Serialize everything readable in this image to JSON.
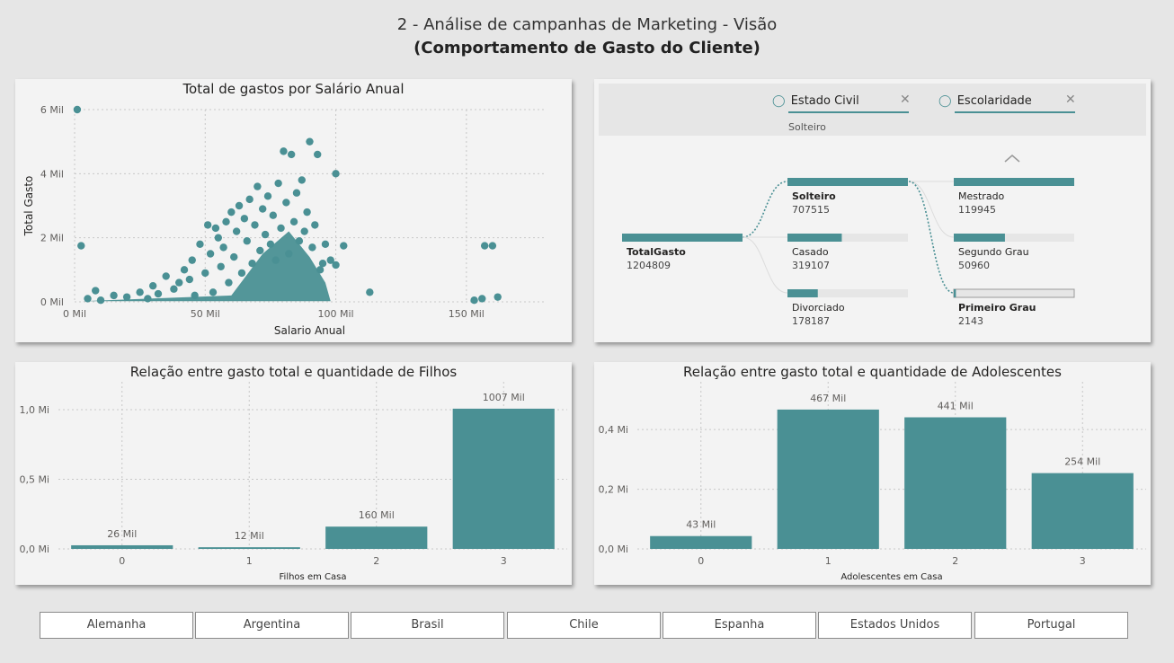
{
  "header": {
    "title": "2 - Análise de campanhas de Marketing - Visão",
    "subtitle": "(Comportamento de Gasto do Cliente)"
  },
  "colors": {
    "teal": "#4a9094",
    "panel": "#f3f3f3",
    "background": "#e6e6e6"
  },
  "scatter": {
    "title": "Total de gastos por Salário Anual",
    "xlabel": "Salario Anual",
    "ylabel": "Total Gasto",
    "xticks": [
      "0 Mil",
      "50 Mil",
      "100 Mil",
      "150 Mil"
    ],
    "yticks": [
      "0 Mil",
      "2 Mil",
      "4 Mil",
      "6 Mil"
    ]
  },
  "decomp": {
    "filters": [
      {
        "label": "Estado Civil",
        "value": "Solteiro"
      },
      {
        "label": "Escolaridade",
        "value": ""
      }
    ],
    "root": {
      "label": "TotalGasto",
      "value": "1204809"
    },
    "level1": [
      {
        "label": "Solteiro",
        "value": "707515",
        "selected": true
      },
      {
        "label": "Casado",
        "value": "319107"
      },
      {
        "label": "Divorciado",
        "value": "178187"
      }
    ],
    "level2": [
      {
        "label": "Mestrado",
        "value": "119945"
      },
      {
        "label": "Segundo Grau",
        "value": "50960"
      },
      {
        "label": "Primeiro Grau",
        "value": "2143",
        "selected": true
      }
    ]
  },
  "chart_data": [
    {
      "type": "scatter",
      "title": "Total de gastos por Salário Anual",
      "xlabel": "Salario Anual",
      "ylabel": "Total Gasto",
      "xlim": [
        0,
        180000
      ],
      "ylim": [
        0,
        6000
      ],
      "x_tick_labels": [
        "0 Mil",
        "50 Mil",
        "100 Mil",
        "150 Mil"
      ],
      "y_tick_labels": [
        "0 Mil",
        "2 Mil",
        "4 Mil",
        "6 Mil"
      ],
      "points": [
        [
          1000,
          6000
        ],
        [
          2500,
          1750
        ],
        [
          5000,
          100
        ],
        [
          8000,
          350
        ],
        [
          10000,
          50
        ],
        [
          15000,
          200
        ],
        [
          20000,
          150
        ],
        [
          25000,
          300
        ],
        [
          28000,
          100
        ],
        [
          30000,
          500
        ],
        [
          32000,
          250
        ],
        [
          35000,
          800
        ],
        [
          38000,
          400
        ],
        [
          40000,
          600
        ],
        [
          42000,
          1000
        ],
        [
          44000,
          700
        ],
        [
          45000,
          1300
        ],
        [
          46000,
          200
        ],
        [
          48000,
          1800
        ],
        [
          50000,
          900
        ],
        [
          51000,
          2400
        ],
        [
          52000,
          1500
        ],
        [
          53000,
          300
        ],
        [
          54000,
          2300
        ],
        [
          55000,
          2000
        ],
        [
          56000,
          1100
        ],
        [
          57000,
          1700
        ],
        [
          58000,
          2500
        ],
        [
          59000,
          600
        ],
        [
          60000,
          2800
        ],
        [
          61000,
          1400
        ],
        [
          62000,
          2200
        ],
        [
          63000,
          3000
        ],
        [
          64000,
          900
        ],
        [
          65000,
          2600
        ],
        [
          66000,
          1900
        ],
        [
          67000,
          3200
        ],
        [
          68000,
          1200
        ],
        [
          69000,
          2400
        ],
        [
          70000,
          3600
        ],
        [
          71000,
          1600
        ],
        [
          72000,
          2900
        ],
        [
          73000,
          2100
        ],
        [
          74000,
          3300
        ],
        [
          75000,
          1800
        ],
        [
          76000,
          2700
        ],
        [
          77000,
          1300
        ],
        [
          78000,
          3700
        ],
        [
          79000,
          2300
        ],
        [
          80000,
          4700
        ],
        [
          81000,
          3100
        ],
        [
          82000,
          1500
        ],
        [
          83000,
          4600
        ],
        [
          84000,
          2500
        ],
        [
          85000,
          3400
        ],
        [
          86000,
          1900
        ],
        [
          87000,
          3800
        ],
        [
          88000,
          2200
        ],
        [
          89000,
          2800
        ],
        [
          90000,
          5000
        ],
        [
          91000,
          1700
        ],
        [
          92000,
          2400
        ],
        [
          93000,
          4600
        ],
        [
          94000,
          1000
        ],
        [
          95000,
          1200
        ],
        [
          96000,
          1800
        ],
        [
          98000,
          1300
        ],
        [
          100000,
          1150
        ],
        [
          100000,
          4000
        ],
        [
          103000,
          1750
        ],
        [
          113000,
          300
        ],
        [
          153000,
          50
        ],
        [
          156000,
          100
        ],
        [
          157000,
          1750
        ],
        [
          160000,
          1750
        ],
        [
          162000,
          150
        ]
      ]
    },
    {
      "type": "bar",
      "title": "Relação entre gasto total e quantidade de Filhos",
      "xlabel": "Filhos em Casa",
      "categories": [
        "0",
        "1",
        "2",
        "3"
      ],
      "values": [
        26000,
        12000,
        160000,
        1007000
      ],
      "data_labels": [
        "26 Mil",
        "12 Mil",
        "160 Mil",
        "1007 Mil"
      ],
      "ylim": [
        0,
        1200000
      ],
      "y_tick_values": [
        0,
        500000,
        1000000
      ],
      "y_tick_labels": [
        "0,0 Mi",
        "0,5 Mi",
        "1,0 Mi"
      ]
    },
    {
      "type": "bar",
      "title": "Relação entre gasto total e quantidade de Adolescentes",
      "xlabel": "Adolescentes em Casa",
      "categories": [
        "0",
        "1",
        "2",
        "3"
      ],
      "values": [
        43000,
        467000,
        441000,
        254000
      ],
      "data_labels": [
        "43 Mil",
        "467 Mil",
        "441 Mil",
        "254 Mil"
      ],
      "ylim": [
        0,
        560000
      ],
      "y_tick_values": [
        0,
        200000,
        400000
      ],
      "y_tick_labels": [
        "0,0 Mi",
        "0,2 Mi",
        "0,4 Mi"
      ]
    }
  ],
  "slicers": [
    "Alemanha",
    "Argentina",
    "Brasil",
    "Chile",
    "Espanha",
    "Estados Unidos",
    "Portugal"
  ]
}
